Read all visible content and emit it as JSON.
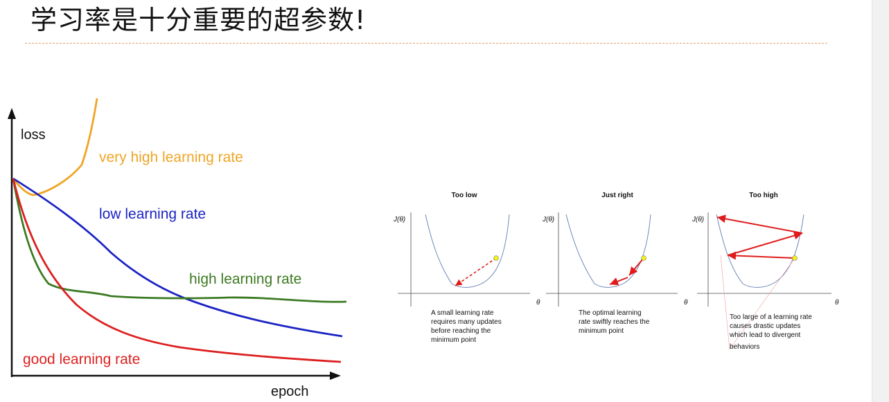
{
  "slide": {
    "title": "学习率是十分重要的超参数!"
  },
  "loss_chart": {
    "y_label": "loss",
    "x_label": "epoch",
    "curves": [
      {
        "label": "very high learning rate",
        "color": "#f0a526"
      },
      {
        "label": "low learning rate",
        "color": "#1b23c4"
      },
      {
        "label": "high learning rate",
        "color": "#3c7a22"
      },
      {
        "label": "good learning rate",
        "color": "#dd1f1f"
      }
    ]
  },
  "gd_panels": [
    {
      "title": "Too low",
      "y_label": "J(θ)",
      "x_label": "θ",
      "caption": [
        "A small learning rate",
        "requires many updates",
        "before reaching the",
        "minimum point"
      ]
    },
    {
      "title": "Just right",
      "y_label": "J(θ)",
      "x_label": "θ",
      "caption": [
        "The optimal learning",
        "rate swiftly reaches the",
        "minimum point"
      ]
    },
    {
      "title": "Too high",
      "y_label": "J(θ)",
      "x_label": "θ",
      "caption": [
        "Too large of a learning rate",
        "causes drastic updates",
        "which lead to divergent",
        "behaviors"
      ]
    }
  ],
  "colors": {
    "title_rule": "#e8a06a",
    "curve_blue": "#6f86b8",
    "arrow_red": "#e01b1b",
    "start_point": "#f2f21a"
  }
}
